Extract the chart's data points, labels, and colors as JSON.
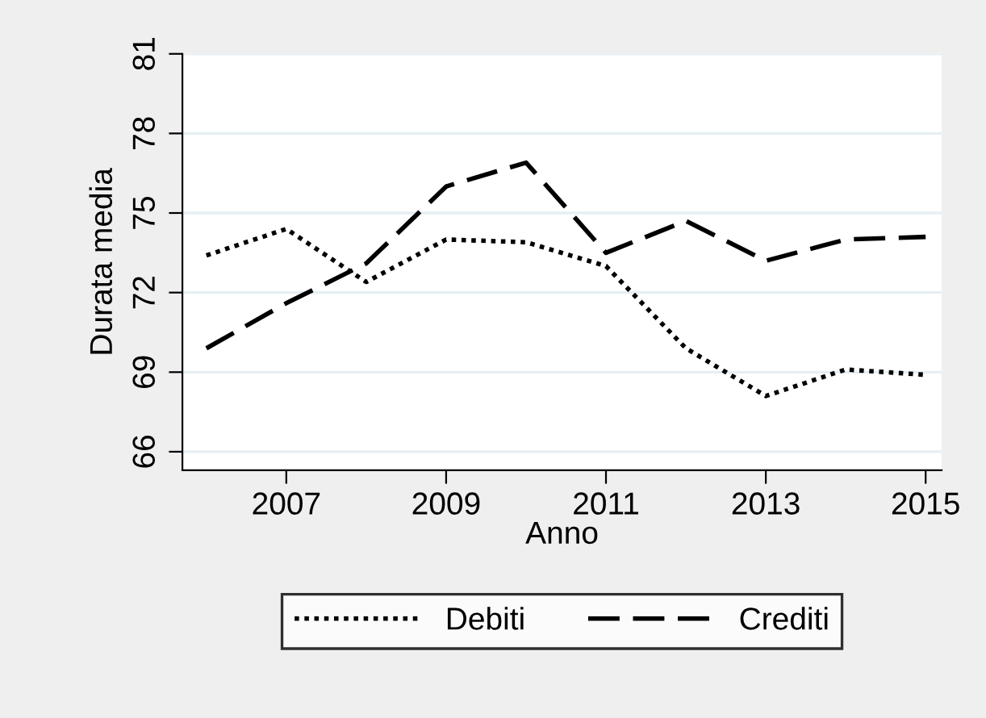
{
  "chart_data": {
    "type": "line",
    "xlabel": "Anno",
    "ylabel": "Durata media",
    "x": [
      2006,
      2007,
      2008,
      2009,
      2010,
      2011,
      2012,
      2013,
      2014,
      2015
    ],
    "series": [
      {
        "name": "Debiti",
        "color": "#000000",
        "line_style": "dotted",
        "values": [
          73.4,
          74.4,
          72.4,
          74.0,
          73.9,
          73.0,
          69.9,
          68.1,
          69.1,
          68.9
        ]
      },
      {
        "name": "Crediti",
        "color": "#000000",
        "line_style": "dashed",
        "values": [
          69.9,
          71.6,
          73.1,
          76.0,
          76.9,
          73.5,
          74.7,
          73.2,
          74.0,
          74.1
        ]
      }
    ],
    "xlim": [
      2005.7,
      2015.2
    ],
    "xticks": [
      2007,
      2009,
      2011,
      2013,
      2015
    ],
    "ylim": [
      65.3,
      81
    ],
    "yticks": [
      66,
      69,
      72,
      75,
      78,
      81
    ],
    "grid": "y",
    "legend": "bottom",
    "marker": "none"
  }
}
